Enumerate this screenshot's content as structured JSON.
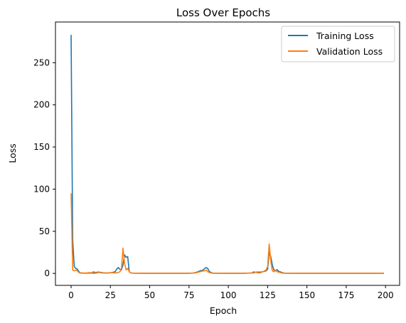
{
  "chart_data": {
    "type": "line",
    "title": "Loss Over Epochs",
    "xlabel": "Epoch",
    "ylabel": "Loss",
    "xlim": [
      -9.95,
      208.95
    ],
    "ylim": [
      -14.2,
      298.3
    ],
    "xticks": [
      0,
      25,
      50,
      75,
      100,
      125,
      150,
      175,
      200
    ],
    "yticks": [
      0,
      50,
      100,
      150,
      200,
      250
    ],
    "grid": false,
    "legend_position": "top-right",
    "series": [
      {
        "name": "Training Loss",
        "color": "#1f77b4",
        "x": [
          0,
          1,
          2,
          3,
          4,
          5,
          6,
          8,
          10,
          12,
          14,
          16,
          18,
          20,
          22,
          24,
          26,
          28,
          29,
          30,
          31,
          32,
          33,
          34,
          35,
          36,
          37,
          38,
          40,
          45,
          50,
          60,
          70,
          75,
          78,
          80,
          82,
          84,
          85,
          86,
          87,
          88,
          90,
          95,
          100,
          110,
          115,
          118,
          120,
          122,
          124,
          125,
          126,
          127,
          128,
          129,
          130,
          131,
          132,
          133,
          134,
          136,
          140,
          150,
          160,
          170,
          180,
          190,
          199
        ],
        "values": [
          283,
          40,
          8,
          6,
          5,
          2,
          0.5,
          0.3,
          0.3,
          0.5,
          0.4,
          0.6,
          1.5,
          0.8,
          0.5,
          0.6,
          1,
          2,
          5,
          7,
          5,
          4,
          10,
          22,
          19,
          20,
          2,
          0.5,
          0.3,
          0.2,
          0.2,
          0.2,
          0.2,
          0.2,
          0.5,
          1.5,
          3,
          4,
          6,
          7,
          5.5,
          2,
          0.3,
          0.2,
          0.2,
          0.2,
          0.5,
          1.5,
          1.5,
          2,
          3,
          5,
          25,
          20,
          10,
          4,
          3,
          4.5,
          2.5,
          2,
          1,
          0.3,
          0.2,
          0.2,
          0.2,
          0.2,
          0.2,
          0.2,
          0.2
        ]
      },
      {
        "name": "Validation Loss",
        "color": "#ff7f0e",
        "x": [
          0,
          1,
          2,
          3,
          4,
          5,
          6,
          8,
          10,
          12,
          13,
          14,
          16,
          17,
          18,
          20,
          22,
          24,
          26,
          28,
          30,
          31,
          32,
          33,
          34,
          35,
          36,
          37,
          38,
          40,
          45,
          50,
          60,
          70,
          75,
          78,
          80,
          82,
          84,
          85,
          86,
          87,
          88,
          90,
          95,
          100,
          110,
          115,
          116,
          118,
          120,
          122,
          124,
          125,
          126,
          127,
          128,
          129,
          130,
          131,
          132,
          133,
          134,
          136,
          140,
          150,
          160,
          170,
          180,
          190,
          199
        ],
        "values": [
          95,
          4,
          3,
          4,
          3,
          1,
          0.5,
          0.5,
          0.5,
          1,
          0.5,
          2,
          1,
          2,
          1,
          0.5,
          0.5,
          0.5,
          1,
          0.5,
          1,
          2,
          5,
          30,
          12,
          4,
          6,
          2,
          0.5,
          0.3,
          0.2,
          0.2,
          0.2,
          0.2,
          0.2,
          0.4,
          1,
          2,
          3,
          3,
          4,
          2,
          1,
          0.2,
          0.2,
          0.2,
          0.2,
          0.5,
          2,
          1,
          0.5,
          2,
          4,
          8,
          35,
          15,
          3,
          2,
          4,
          2,
          1.5,
          1,
          0.5,
          0.2,
          0.2,
          0.2,
          0.2,
          0.2,
          0.2,
          0.2,
          0.2
        ]
      }
    ]
  }
}
